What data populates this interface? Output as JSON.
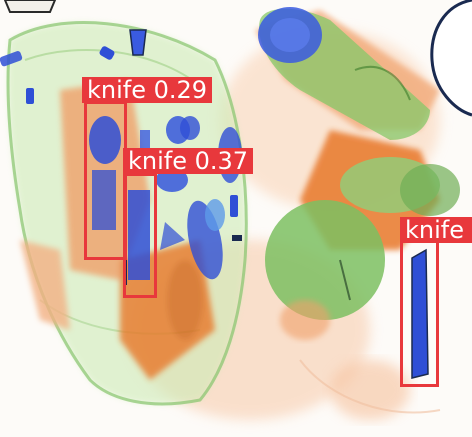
{
  "detections": [
    {
      "label": "knife",
      "score": "0.29"
    },
    {
      "label": "knife",
      "score": "0.37"
    },
    {
      "label": "knife",
      "score": ""
    }
  ],
  "colors": {
    "box": "#e8383c",
    "label_text": "#ffffff",
    "organic": "#e8782a",
    "low_density": "#8fd07a",
    "metal": "#2f4fd6",
    "outline": "#1a2a50"
  }
}
